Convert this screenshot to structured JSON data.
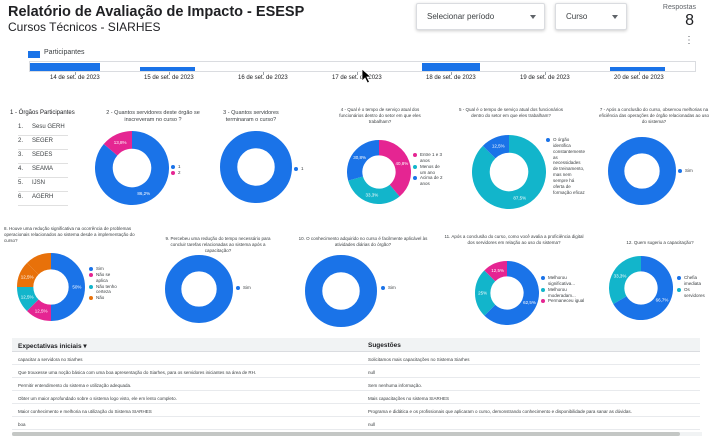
{
  "header": {
    "title": "Relatório de Avaliação de Impacto - ESESP",
    "subtitle": "Cursos Técnicos - SIARHES",
    "period_placeholder": "Selecionar período",
    "course_label": "Curso",
    "responses_label": "Respostas",
    "responses_value": "8"
  },
  "timeline": {
    "legend": "Participantes",
    "dates": [
      "14 de set. de 2023",
      "15 de set. de 2023",
      "16 de set. de 2023",
      "17 de set. de 2023",
      "18 de set. de 2023",
      "19 de set. de 2023",
      "20 de set. de 2023"
    ]
  },
  "orgs": {
    "title": "1 - Órgãos Participantes",
    "items": [
      {
        "num": "1.",
        "name": "Sesu GERH"
      },
      {
        "num": "2.",
        "name": "SEGER"
      },
      {
        "num": "3.",
        "name": "SEDES"
      },
      {
        "num": "4.",
        "name": "SEAMA"
      },
      {
        "num": "5.",
        "name": "IJSN"
      },
      {
        "num": "6.",
        "name": "AGERH"
      }
    ]
  },
  "charts": {
    "q2": {
      "title": "2 - Quantos servidores deste órgão se inscreveram no curso ?",
      "labels": [
        "86,2%",
        "13,8%"
      ],
      "legend": [
        "1",
        "2"
      ]
    },
    "q3": {
      "title": "3 - Quantos servidores terminaram o curso?",
      "labels": [
        "100%"
      ],
      "legend": [
        "1"
      ]
    },
    "q4": {
      "title": "4 - Qual é o tempo de serviço atual dos funcionários dentro do setor em que eles trabalham?",
      "labels": [
        "40,8%",
        "33,3%",
        "30,8%"
      ],
      "legend": [
        "Entre 1 e 3 anos",
        "Menos de um ano",
        "Acima de 2 anos"
      ]
    },
    "q5": {
      "title": "5 - Qual é o tempo de serviço atual dos funcionários dentro do setor em que eles trabalham?",
      "labels": [
        "87,5%",
        "12,5%"
      ],
      "legend": [
        "O órgão identifica constantemente as necessidades de treinamento, mas nem sempre há oferta de formação eficaz",
        ""
      ]
    },
    "q7": {
      "title": "7 - Após a conclusão do curso, observou melhorias na eficiência das operações de órgão relacionadas ao uso do sistema?",
      "labels": [
        "100%"
      ],
      "legend": [
        "Sim"
      ]
    },
    "q8": {
      "title": "8. Houve uma redução significativa na ocorrência de problemas operacionais relacionados ao sistema desde a implementação do curso?",
      "labels": [
        "50%",
        "12,5%",
        "12,5%",
        "12,5%"
      ],
      "legend": [
        "Sim",
        "Não se aplica",
        "Não tenho certeza",
        "Não"
      ]
    },
    "q9": {
      "title": "9. Percebeu uma redução do tempo necessário para concluir tarefas relacionadas ao sistema após a capacitação?",
      "labels": [
        "100%"
      ],
      "legend": [
        "Sim"
      ]
    },
    "q10": {
      "title": "10. O conhecimento adquirido no curso é facilmente aplicável às atividades diárias do órgão?",
      "labels": [
        "100%"
      ],
      "legend": [
        "Sim"
      ]
    },
    "q11": {
      "title": "11. Após a conclusão do curso, como você avalia a proficiência digital dos servidores em relação ao uso do sistema?",
      "labels": [
        "62,5%",
        "25%",
        "12,5%"
      ],
      "legend": [
        "Melhorou significativa...",
        "Melhorou moderadam...",
        "Permaneceu igual"
      ]
    },
    "q12": {
      "title": "12. Quem sugeriu a capacitação?",
      "labels": [
        "66,7%",
        "33,3%"
      ],
      "legend": [
        "Chefia imediata",
        "Os servidores"
      ]
    }
  },
  "table": {
    "col1": "Expectativas iniciais",
    "col2": "Sugestões",
    "rows": [
      [
        "capacitar a servidora no Siarhes",
        "Solicitamos mais capacitações no Sistema Siarhes"
      ],
      [
        "Que trouxesse uma noção básica com uma boa apresentação do Siarhes, para os servidores iniciantes na área de RH.",
        "null"
      ],
      [
        "Permitir entendimento do sistema e utilização adequada.",
        "Sem nenhuma informação."
      ],
      [
        "Obter um maior aprofundado sobre o sistema logo visto, ele em lento completo.",
        "Mais capacitações no sistema SIARHES"
      ],
      [
        "Maior conhecimento e melhoria na utilização do Sistema SIARHES",
        "Programa e didática e os profissionais que aplicaram o curso, demonstrando conhecimento e disponibilidade para sanar as dúvidas."
      ],
      [
        "boa",
        "null"
      ]
    ]
  },
  "colors": {
    "blue": "#1a73e8",
    "pink": "#e52592",
    "teal": "#12b5cb",
    "orange": "#e8710a",
    "green": "#1e8e3e"
  }
}
